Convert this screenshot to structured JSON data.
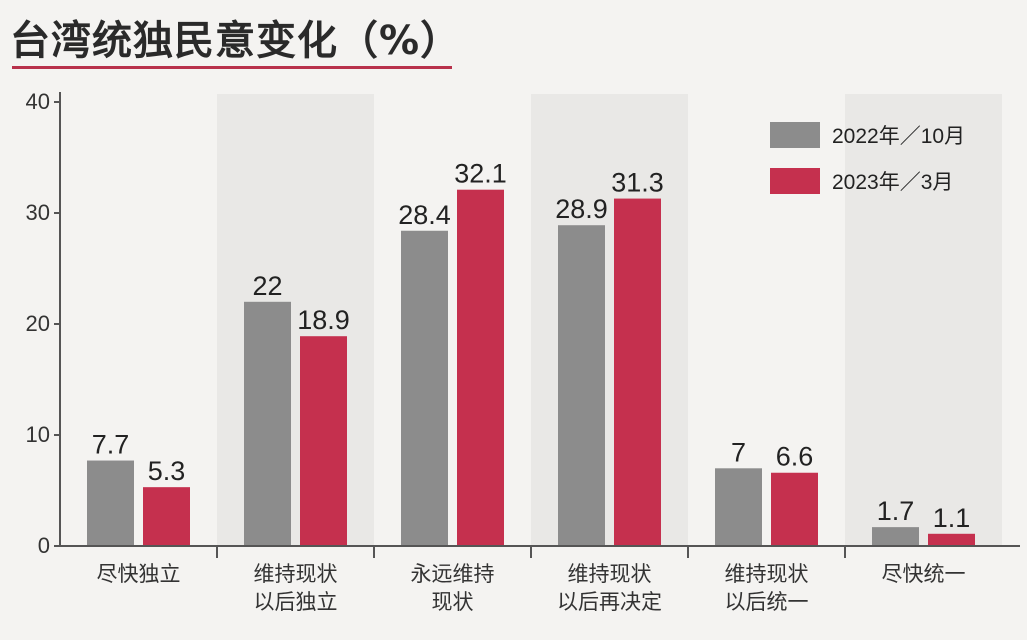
{
  "title": "台湾统独民意变化（%）",
  "colors": {
    "series_2022": "#8c8c8c",
    "series_2023": "#c5304e",
    "axis": "#555555",
    "band": "#e9e8e6"
  },
  "chart_data": {
    "type": "bar",
    "title": "台湾统独民意变化（%）",
    "categories": [
      [
        "尽快独立"
      ],
      [
        "维持现状",
        "以后独立"
      ],
      [
        "永远维持",
        "现状"
      ],
      [
        "维持现状",
        "以后再决定"
      ],
      [
        "维持现状",
        "以后统一"
      ],
      [
        "尽快统一"
      ]
    ],
    "series": [
      {
        "name": "2022年／10月",
        "values": [
          7.7,
          22,
          28.4,
          28.9,
          7,
          1.7
        ],
        "labels": [
          "7.7",
          "22",
          "28.4",
          "28.9",
          "7",
          "1.7"
        ]
      },
      {
        "name": "2023年／3月",
        "values": [
          5.3,
          18.9,
          32.1,
          31.3,
          6.6,
          1.1
        ],
        "labels": [
          "5.3",
          "18.9",
          "32.1",
          "31.3",
          "6.6",
          "1.1"
        ]
      }
    ],
    "ylim": [
      0,
      40
    ],
    "yticks": [
      0,
      10,
      20,
      30,
      40
    ],
    "xlabel": "",
    "ylabel": "",
    "legend_position": "top-right",
    "grid": false
  }
}
